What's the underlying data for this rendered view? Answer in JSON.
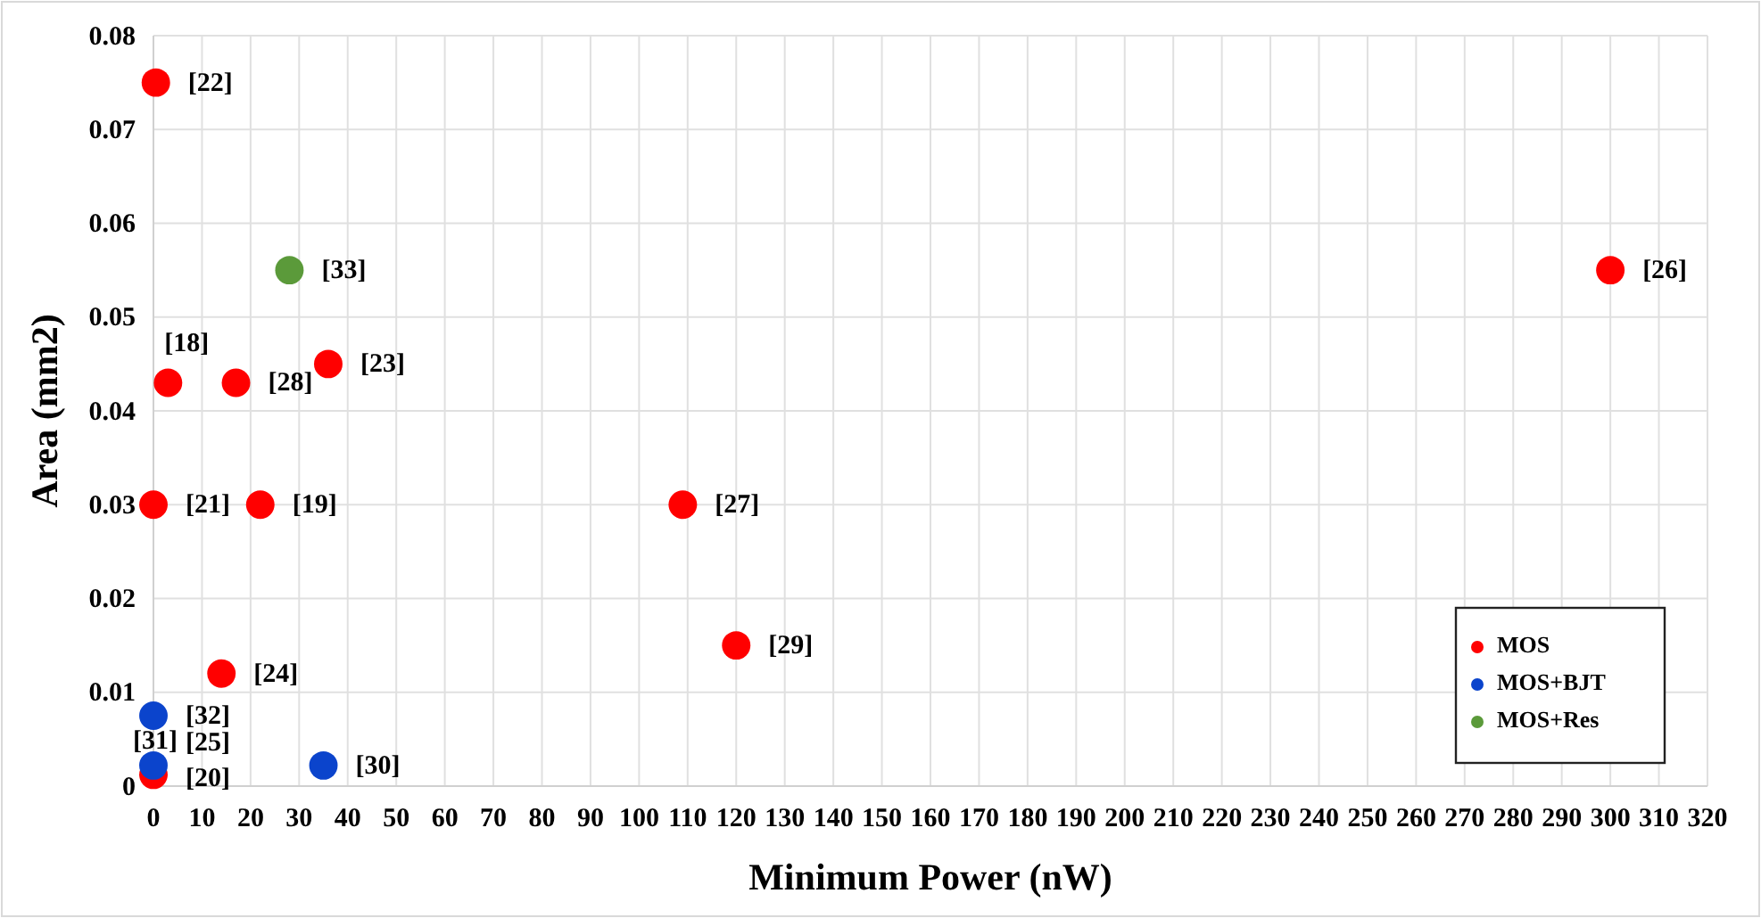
{
  "chart_data": {
    "type": "scatter",
    "xlabel": "Minimum Power (nW)",
    "ylabel": "Area (mm2)",
    "xlim": [
      0,
      320
    ],
    "xticks": [
      0,
      10,
      20,
      30,
      40,
      50,
      60,
      70,
      80,
      90,
      100,
      110,
      120,
      130,
      140,
      150,
      160,
      170,
      180,
      190,
      200,
      210,
      220,
      230,
      240,
      250,
      260,
      270,
      280,
      290,
      300,
      310,
      320
    ],
    "ylim": [
      0,
      0.08
    ],
    "yticks": [
      0,
      0.01,
      0.02,
      0.03,
      0.04,
      0.05,
      0.06,
      0.07,
      0.08
    ],
    "grid": true,
    "legend": "bottom right",
    "marker": "circle",
    "series": [
      {
        "name": "MOS",
        "color": "#ff0000",
        "x": [
          0.5,
          3,
          17,
          36,
          0,
          22,
          109,
          120,
          14,
          0,
          300
        ],
        "values": [
          0.075,
          0.043,
          0.043,
          0.045,
          0.03,
          0.03,
          0.03,
          0.015,
          0.012,
          0.0012,
          0.055
        ]
      },
      {
        "name": "MOS+BJT",
        "color": "#0b44cc",
        "x": [
          0,
          0,
          35
        ],
        "values": [
          0.0075,
          0.0022,
          0.0022
        ]
      },
      {
        "name": "MOS+Res",
        "color": "#5b9a3a",
        "x": [
          28
        ],
        "values": [
          0.055
        ]
      }
    ],
    "annotations": [
      {
        "text": "[22]",
        "x": 0.5,
        "y": 0.075
      },
      {
        "text": "[18]",
        "x": 3,
        "y": 0.043
      },
      {
        "text": "[28]",
        "x": 17,
        "y": 0.043
      },
      {
        "text": "[23]",
        "x": 36,
        "y": 0.045
      },
      {
        "text": "[21]",
        "x": 0,
        "y": 0.03
      },
      {
        "text": "[19]",
        "x": 22,
        "y": 0.03
      },
      {
        "text": "[27]",
        "x": 109,
        "y": 0.03
      },
      {
        "text": "[29]",
        "x": 120,
        "y": 0.015
      },
      {
        "text": "[24]",
        "x": 14,
        "y": 0.012
      },
      {
        "text": "[20]",
        "x": 0,
        "y": 0.0012
      },
      {
        "text": "[26]",
        "x": 300,
        "y": 0.055
      },
      {
        "text": "[32]",
        "x": 0,
        "y": 0.0075
      },
      {
        "text": "[31]",
        "x": 0,
        "y": 0.0022
      },
      {
        "text": "[25]",
        "x": 0,
        "y": 0.0022
      },
      {
        "text": "[30]",
        "x": 35,
        "y": 0.0022
      },
      {
        "text": "[33]",
        "x": 28,
        "y": 0.055
      }
    ]
  }
}
